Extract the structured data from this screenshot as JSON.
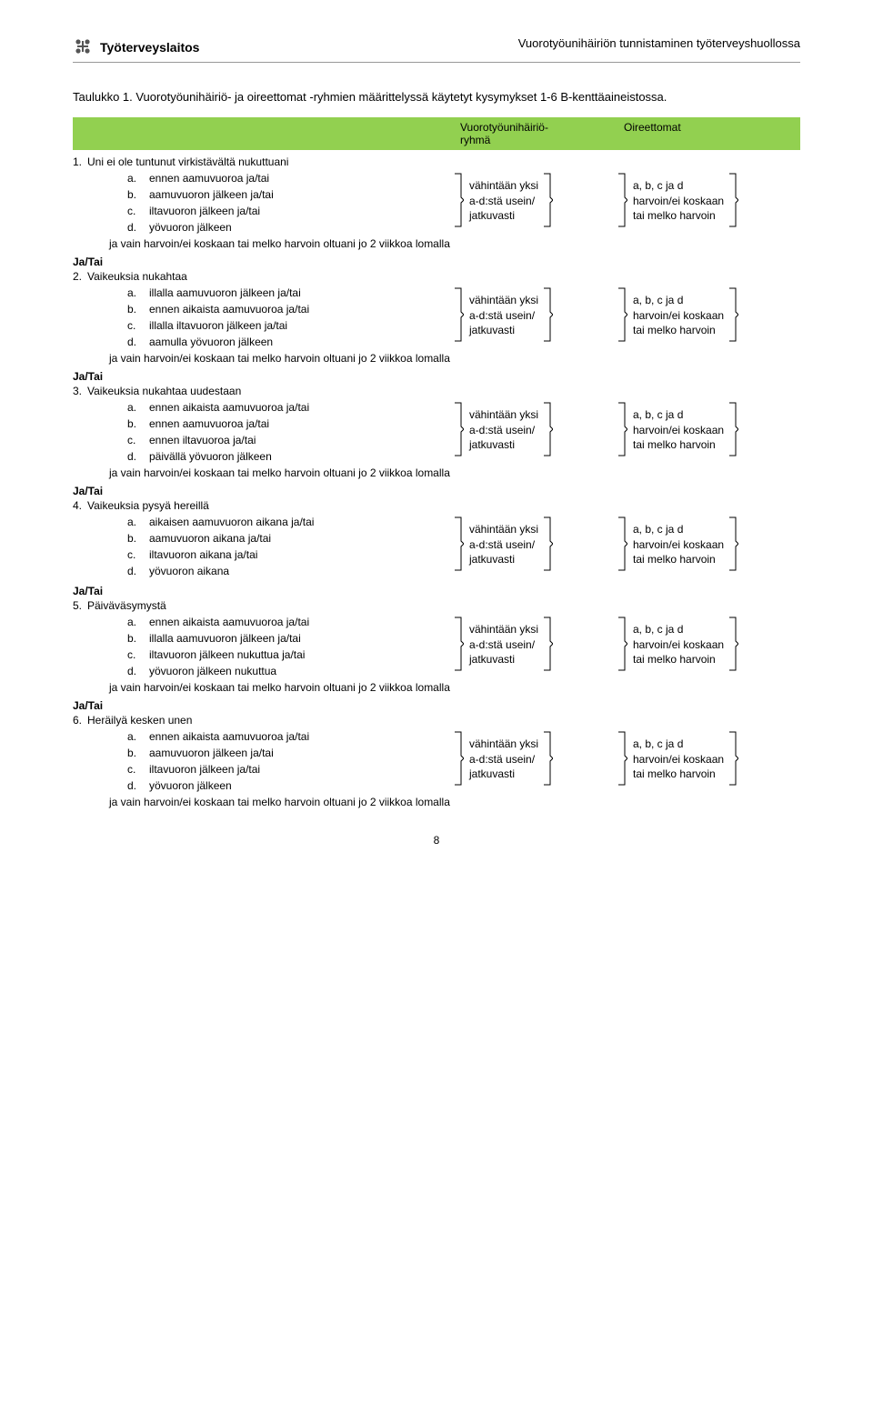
{
  "header": {
    "logo_text": "Työterveyslaitos",
    "doc_title": "Vuorotyöunihäiriön tunnistaminen työterveyshuollossa"
  },
  "intro": "Taulukko 1. Vuorotyöunihäiriö- ja oireettomat -ryhmien määrittelyssä käytetyt kysymykset 1-6 B-kenttäaineistossa.",
  "green": {
    "col1_l1": "Vuorotyöunihäiriö-",
    "col1_l2": "ryhmä",
    "col2": "Oireettomat"
  },
  "mid": {
    "l1": "vähintään yksi",
    "l2": "a-d:stä usein/",
    "l3": "jatkuvasti"
  },
  "right": {
    "l1": "a, b, c ja d",
    "l2": "harvoin/ei koskaan",
    "l3": "tai melko harvoin"
  },
  "note_text": "ja vain harvoin/ei koskaan tai melko harvoin oltuani jo 2 viikkoa lomalla",
  "jatai": "Ja/Tai",
  "questions": [
    {
      "num": "1.",
      "title": "Uni ei ole tuntunut virkistävältä nukuttuani",
      "items": [
        {
          "l": "a.",
          "t": "ennen aamuvuoroa ja/tai"
        },
        {
          "l": "b.",
          "t": "aamuvuoron jälkeen ja/tai"
        },
        {
          "l": "c.",
          "t": "iltavuoron jälkeen ja/tai"
        },
        {
          "l": "d.",
          "t": "yövuoron jälkeen"
        }
      ],
      "note": true
    },
    {
      "num": "2.",
      "title": "Vaikeuksia nukahtaa",
      "items": [
        {
          "l": "a.",
          "t": "illalla aamuvuoron jälkeen ja/tai"
        },
        {
          "l": "b.",
          "t": "ennen aikaista aamuvuoroa ja/tai"
        },
        {
          "l": "c.",
          "t": "illalla iltavuoron jälkeen ja/tai"
        },
        {
          "l": "d.",
          "t": "aamulla yövuoron jälkeen"
        }
      ],
      "note": true
    },
    {
      "num": "3.",
      "title": "Vaikeuksia nukahtaa uudestaan",
      "items": [
        {
          "l": "a.",
          "t": "ennen aikaista aamuvuoroa ja/tai"
        },
        {
          "l": "b.",
          "t": "ennen aamuvuoroa ja/tai"
        },
        {
          "l": "c.",
          "t": "ennen iltavuoroa ja/tai"
        },
        {
          "l": "d.",
          "t": "päivällä yövuoron jälkeen"
        }
      ],
      "note": true
    },
    {
      "num": "4.",
      "title": "Vaikeuksia pysyä hereillä",
      "items": [
        {
          "l": "a.",
          "t": "aikaisen aamuvuoron aikana ja/tai"
        },
        {
          "l": "b.",
          "t": "aamuvuoron aikana ja/tai"
        },
        {
          "l": "c.",
          "t": "iltavuoron aikana ja/tai"
        },
        {
          "l": "d.",
          "t": "yövuoron aikana"
        }
      ],
      "note": false
    },
    {
      "num": "5.",
      "title": "Päiväväsymystä",
      "items": [
        {
          "l": "a.",
          "t": "ennen aikaista aamuvuoroa ja/tai"
        },
        {
          "l": "b.",
          "t": "illalla aamuvuoron jälkeen ja/tai"
        },
        {
          "l": "c.",
          "t": "iltavuoron jälkeen nukuttua ja/tai"
        },
        {
          "l": "d.",
          "t": "yövuoron jälkeen nukuttua"
        }
      ],
      "note": true
    },
    {
      "num": "6.",
      "title": "Heräilyä kesken unen",
      "items": [
        {
          "l": "a.",
          "t": "ennen aikaista aamuvuoroa ja/tai"
        },
        {
          "l": "b.",
          "t": "aamuvuoron jälkeen ja/tai"
        },
        {
          "l": "c.",
          "t": "iltavuoron jälkeen ja/tai"
        },
        {
          "l": "d.",
          "t": "yövuoron jälkeen"
        }
      ],
      "note": true
    }
  ],
  "page_number": "8"
}
